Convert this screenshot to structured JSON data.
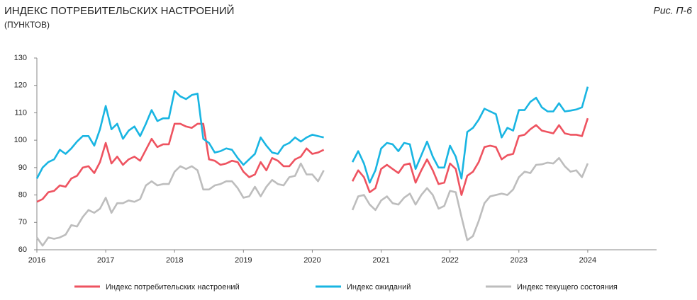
{
  "chart_data": {
    "type": "line",
    "title": "ИНДЕКС ПОТРЕБИТЕЛЬСКИХ НАСТРОЕНИЙ",
    "subtitle": "(ПУНКТОВ)",
    "annotation": "Рис. П-6",
    "categories": [
      "2016",
      null,
      null,
      null,
      null,
      null,
      null,
      null,
      null,
      null,
      null,
      null,
      "2017",
      null,
      null,
      null,
      null,
      null,
      null,
      null,
      null,
      null,
      null,
      null,
      "2018",
      null,
      null,
      null,
      null,
      null,
      null,
      null,
      null,
      null,
      null,
      null,
      "2019",
      null,
      null,
      null,
      null,
      null,
      null,
      null,
      null,
      null,
      null,
      null,
      "2020",
      null,
      null,
      null,
      null,
      null,
      null,
      null,
      null,
      null,
      null,
      null,
      "2021",
      null,
      null,
      null,
      null,
      null,
      null,
      null,
      null,
      null,
      null,
      null,
      "2022",
      null,
      null,
      null,
      null,
      null,
      null,
      null,
      null,
      null,
      null,
      null,
      "2023",
      null,
      null,
      null,
      null,
      null,
      null,
      null,
      null,
      null,
      null,
      null,
      "2024",
      null,
      null,
      null,
      null,
      null,
      null,
      null,
      null,
      null,
      null,
      null
    ],
    "ylim": [
      60,
      130
    ],
    "yticks": [
      60,
      70,
      80,
      90,
      100,
      110,
      120,
      130
    ],
    "grid": false,
    "legend": "bottom",
    "series": [
      {
        "name": "Индекс потребительских настроений",
        "color": "#ee5360",
        "values": [
          77.5,
          78.5,
          81,
          81.5,
          83.5,
          83,
          86,
          87,
          90,
          90.5,
          88,
          92,
          99,
          91.5,
          94,
          91,
          93,
          94,
          92.5,
          96.5,
          100.5,
          97.5,
          98.5,
          98.5,
          106,
          106,
          105,
          104.5,
          106,
          106,
          93,
          92.5,
          91,
          91.5,
          92.5,
          92,
          88.5,
          86.5,
          87.5,
          92,
          89,
          93.5,
          92.5,
          90.5,
          90.5,
          93,
          94,
          97,
          95,
          95.5,
          96.5,
          null,
          null,
          null,
          null,
          85,
          89,
          86.5,
          81,
          82.5,
          89.5,
          91,
          89.5,
          88,
          91,
          91.5,
          84.5,
          89,
          93,
          89,
          84,
          84.5,
          91.5,
          89.5,
          80,
          87,
          88.5,
          92,
          97.5,
          98,
          97.5,
          93,
          94.5,
          95,
          101.5,
          102,
          104,
          105.5,
          103.5,
          103,
          102.5,
          105.5,
          102.5,
          102,
          102,
          101.5,
          108,
          null,
          null,
          null,
          null,
          null,
          null,
          null,
          null,
          null,
          null,
          null
        ]
      },
      {
        "name": "Индекс ожиданий",
        "color": "#19b5e2",
        "values": [
          86,
          90,
          92,
          93,
          96.5,
          95,
          97,
          99.5,
          101.5,
          101.5,
          98,
          104,
          112.5,
          104,
          106,
          100.5,
          103.5,
          105,
          101.5,
          106,
          111,
          107,
          108,
          108,
          118,
          116,
          115,
          116.5,
          117,
          100.5,
          99,
          95.5,
          96,
          97,
          96.5,
          93.5,
          91,
          93,
          95,
          101,
          98,
          95.5,
          95,
          98,
          99,
          101,
          99.5,
          101,
          102,
          101.5,
          101,
          null,
          null,
          null,
          null,
          92,
          96,
          91.5,
          84.5,
          89,
          97,
          99,
          98.5,
          96,
          99,
          98.5,
          89.5,
          94.5,
          99.5,
          94,
          90,
          90,
          98,
          94,
          86,
          103,
          104.5,
          107.5,
          111.5,
          110.5,
          109.5,
          101,
          104.5,
          103.5,
          111,
          111,
          114,
          115.5,
          112,
          110.5,
          110.5,
          113.5,
          110.5,
          110.8,
          111.2,
          112,
          119.5,
          null,
          null,
          null,
          null,
          null,
          null,
          null,
          null,
          null,
          null,
          null
        ]
      },
      {
        "name": "Индекс текущего состояния",
        "color": "#bdbdbd",
        "values": [
          64.5,
          61.5,
          64.5,
          64,
          64.5,
          65.5,
          69,
          68.5,
          72,
          74.5,
          73.5,
          75,
          79,
          73.5,
          77,
          77,
          78,
          77.5,
          78.5,
          83.5,
          85,
          83.5,
          84,
          84,
          88.5,
          90.5,
          89.5,
          90.5,
          89,
          82,
          82,
          83.5,
          84,
          85,
          85,
          82.5,
          79,
          79.5,
          83,
          79.5,
          83,
          85.5,
          84,
          83.5,
          86.5,
          87,
          91.5,
          87.5,
          87.5,
          85,
          89,
          null,
          null,
          null,
          null,
          74.5,
          79.5,
          80,
          76.5,
          74.5,
          78,
          79.5,
          77,
          76.5,
          79,
          80.5,
          76.5,
          80,
          82.5,
          80,
          75,
          76,
          81.5,
          81,
          72,
          63.5,
          65,
          70.5,
          77,
          79.5,
          80,
          80.5,
          80,
          82,
          86.5,
          88.5,
          88,
          91,
          91.2,
          91.8,
          91.5,
          93.5,
          90.5,
          88.5,
          89,
          86.5,
          91.5,
          null,
          null,
          null,
          null,
          null,
          null,
          null,
          null,
          null,
          null,
          null
        ]
      }
    ]
  }
}
